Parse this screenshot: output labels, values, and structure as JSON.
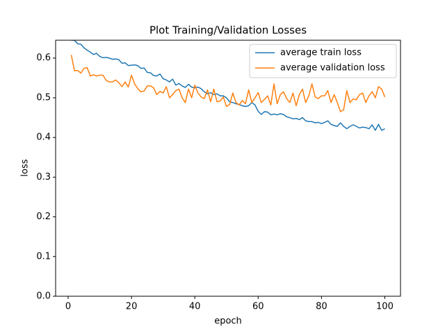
{
  "chart_data": {
    "type": "line",
    "title": "Plot Training/Validation Losses",
    "x_label": "epoch",
    "y_label": "loss",
    "x": [
      1,
      2,
      3,
      4,
      5,
      6,
      7,
      8,
      9,
      10,
      11,
      12,
      13,
      14,
      15,
      16,
      17,
      18,
      19,
      20,
      21,
      22,
      23,
      24,
      25,
      26,
      27,
      28,
      29,
      30,
      31,
      32,
      33,
      34,
      35,
      36,
      37,
      38,
      39,
      40,
      41,
      42,
      43,
      44,
      45,
      46,
      47,
      48,
      49,
      50,
      51,
      52,
      53,
      54,
      55,
      56,
      57,
      58,
      59,
      60,
      61,
      62,
      63,
      64,
      65,
      66,
      67,
      68,
      69,
      70,
      71,
      72,
      73,
      74,
      75,
      76,
      77,
      78,
      79,
      80,
      81,
      82,
      83,
      84,
      85,
      86,
      87,
      88,
      89,
      90,
      91,
      92,
      93,
      94,
      95,
      96,
      97,
      98,
      99,
      100
    ],
    "series": [
      {
        "name": "average train loss",
        "color": "#1f77b4",
        "values": [
          0.645,
          0.645,
          0.636,
          0.635,
          0.626,
          0.62,
          0.615,
          0.609,
          0.612,
          0.604,
          0.601,
          0.602,
          0.6,
          0.597,
          0.598,
          0.596,
          0.587,
          0.588,
          0.581,
          0.582,
          0.583,
          0.581,
          0.574,
          0.575,
          0.564,
          0.563,
          0.556,
          0.555,
          0.56,
          0.548,
          0.545,
          0.54,
          0.547,
          0.532,
          0.536,
          0.53,
          0.526,
          0.534,
          0.527,
          0.525,
          0.527,
          0.523,
          0.515,
          0.51,
          0.513,
          0.508,
          0.51,
          0.505,
          0.505,
          0.5,
          0.49,
          0.488,
          0.485,
          0.483,
          0.48,
          0.478,
          0.48,
          0.488,
          0.482,
          0.466,
          0.458,
          0.465,
          0.464,
          0.457,
          0.459,
          0.457,
          0.46,
          0.458,
          0.452,
          0.45,
          0.447,
          0.448,
          0.445,
          0.45,
          0.442,
          0.44,
          0.44,
          0.437,
          0.438,
          0.435,
          0.438,
          0.442,
          0.433,
          0.43,
          0.428,
          0.437,
          0.428,
          0.422,
          0.428,
          0.432,
          0.428,
          0.424,
          0.426,
          0.425,
          0.422,
          0.432,
          0.418,
          0.433,
          0.418,
          0.422
        ]
      },
      {
        "name": "average validation loss",
        "color": "#ff7f0e",
        "values": [
          0.608,
          0.568,
          0.569,
          0.562,
          0.574,
          0.576,
          0.555,
          0.558,
          0.555,
          0.557,
          0.557,
          0.544,
          0.54,
          0.54,
          0.545,
          0.538,
          0.528,
          0.54,
          0.527,
          0.557,
          0.535,
          0.523,
          0.515,
          0.517,
          0.53,
          0.53,
          0.525,
          0.508,
          0.516,
          0.512,
          0.528,
          0.5,
          0.508,
          0.518,
          0.522,
          0.5,
          0.488,
          0.522,
          0.5,
          0.532,
          0.512,
          0.502,
          0.498,
          0.52,
          0.49,
          0.522,
          0.49,
          0.492,
          0.502,
          0.478,
          0.483,
          0.512,
          0.488,
          0.482,
          0.493,
          0.485,
          0.52,
          0.488,
          0.5,
          0.513,
          0.488,
          0.496,
          0.505,
          0.482,
          0.535,
          0.485,
          0.508,
          0.515,
          0.498,
          0.488,
          0.512,
          0.48,
          0.508,
          0.522,
          0.488,
          0.505,
          0.535,
          0.502,
          0.498,
          0.505,
          0.505,
          0.518,
          0.488,
          0.508,
          0.488,
          0.465,
          0.47,
          0.518,
          0.488,
          0.497,
          0.495,
          0.508,
          0.512,
          0.488,
          0.505,
          0.515,
          0.5,
          0.528,
          0.522,
          0.502
        ]
      }
    ],
    "xlim": [
      -3.95,
      104.95
    ],
    "xticks": [
      0,
      20,
      40,
      60,
      80,
      100
    ],
    "ylim": [
      0,
      0.645
    ],
    "yticks": [
      {
        "value": 0,
        "label": "0.0"
      },
      0.1,
      0.2,
      0.3,
      0.4,
      0.5,
      0.6
    ],
    "grid": false,
    "legend": "upper right"
  }
}
